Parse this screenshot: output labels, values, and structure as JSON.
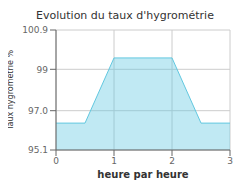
{
  "chart_data": {
    "type": "area",
    "title": "Evolution du taux d'hygrométrie",
    "xlabel": "heure par heure",
    "ylabel": "Taux hygrométrie %",
    "x": [
      0,
      0.5,
      1,
      2,
      2.5,
      3
    ],
    "values": [
      96.4,
      96.4,
      99.55,
      99.55,
      96.4,
      96.4
    ],
    "color": "#62c8e0",
    "xlim": [
      0,
      3
    ],
    "ylim": [
      95.1,
      100.9
    ],
    "xticks": [
      0,
      1,
      2,
      3
    ],
    "yticks": [
      95.1,
      {
        "value": 97,
        "label": "97.0"
      },
      99,
      100.9
    ],
    "grid": true
  }
}
